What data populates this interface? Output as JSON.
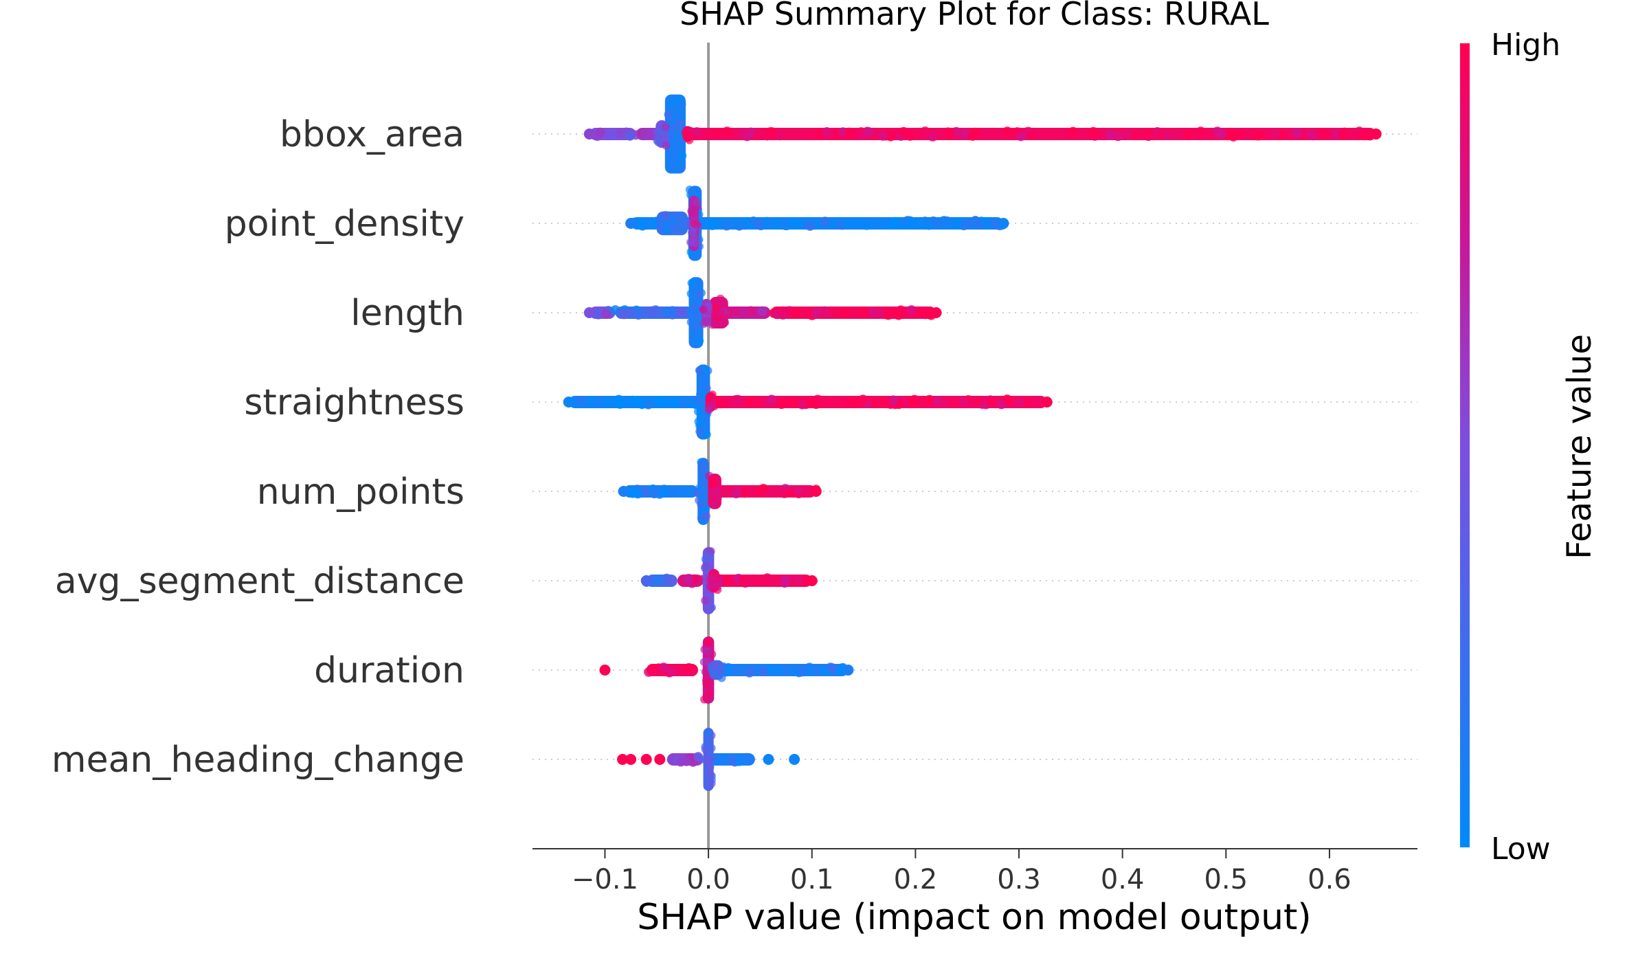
{
  "chart_data": {
    "type": "scatter",
    "title": "SHAP Summary Plot for Class: RURAL",
    "xlabel": "SHAP value (impact on model output)",
    "ylabel": "",
    "xlim": [
      -0.17,
      0.685
    ],
    "xticks": [
      -0.1,
      0.0,
      0.1,
      0.2,
      0.3,
      0.4,
      0.5,
      0.6
    ],
    "xtick_labels": [
      "−0.1",
      "0.0",
      "0.1",
      "0.2",
      "0.3",
      "0.4",
      "0.5",
      "0.6"
    ],
    "colorbar": {
      "title": "Feature value",
      "high_label": "High",
      "low_label": "Low",
      "low_color": "#008bfb",
      "high_color": "#ff0052"
    },
    "zero_line": true,
    "features": [
      {
        "name": "bbox_area",
        "min": -0.115,
        "max": 0.645,
        "segments": [
          {
            "from": -0.115,
            "to": -0.07,
            "color": 0.5
          },
          {
            "from": -0.07,
            "to": -0.045,
            "color": 0.6
          },
          {
            "from": -0.045,
            "to": -0.02,
            "color": 0.15
          },
          {
            "from": -0.02,
            "to": 0.645,
            "color": 0.95
          }
        ],
        "clusters": [
          {
            "x": -0.032,
            "width": 0.02,
            "height": 1.0,
            "color": 0.1
          },
          {
            "x": -0.045,
            "width": 0.012,
            "height": 0.35,
            "color": 0.45
          },
          {
            "x": -0.02,
            "width": 0.01,
            "height": 0.2,
            "color": 0.9
          }
        ],
        "endpoints": [
          {
            "x": -0.115,
            "color": 0.55
          },
          {
            "x": 0.645,
            "color": 1.0
          }
        ]
      },
      {
        "name": "point_density",
        "min": -0.075,
        "max": 0.285,
        "segments": [
          {
            "from": -0.075,
            "to": 0.285,
            "color": 0.05
          }
        ],
        "clusters": [
          {
            "x": -0.013,
            "width": 0.013,
            "height": 0.95,
            "color": 0.08
          },
          {
            "x": -0.035,
            "width": 0.03,
            "height": 0.3,
            "color": 0.2
          },
          {
            "x": -0.014,
            "width": 0.006,
            "height": 0.7,
            "color": 0.7
          }
        ],
        "endpoints": [
          {
            "x": -0.075,
            "color": 0.1
          },
          {
            "x": 0.285,
            "color": 0.05
          }
        ]
      },
      {
        "name": "length",
        "min": -0.115,
        "max": 0.22,
        "segments": [
          {
            "from": -0.115,
            "to": -0.09,
            "color": 0.45
          },
          {
            "from": -0.09,
            "to": -0.015,
            "color": 0.25
          },
          {
            "from": 0.005,
            "to": 0.06,
            "color": 0.75
          },
          {
            "from": 0.06,
            "to": 0.22,
            "color": 0.97
          }
        ],
        "clusters": [
          {
            "x": -0.012,
            "width": 0.014,
            "height": 0.9,
            "color": 0.1
          },
          {
            "x": 0.01,
            "width": 0.018,
            "height": 0.4,
            "color": 0.85
          },
          {
            "x": -0.002,
            "width": 0.006,
            "height": 0.35,
            "color": 0.6
          }
        ],
        "endpoints": [
          {
            "x": -0.115,
            "color": 0.5
          },
          {
            "x": 0.22,
            "color": 1.0
          }
        ]
      },
      {
        "name": "straightness",
        "min": -0.135,
        "max": 0.327,
        "segments": [
          {
            "from": -0.135,
            "to": -0.005,
            "color": 0.05
          },
          {
            "from": 0.0,
            "to": 0.327,
            "color": 0.96
          }
        ],
        "clusters": [
          {
            "x": -0.005,
            "width": 0.013,
            "height": 0.95,
            "color": 0.1
          },
          {
            "x": 0.002,
            "width": 0.01,
            "height": 0.25,
            "color": 0.85
          }
        ],
        "endpoints": [
          {
            "x": -0.135,
            "color": 0.05
          },
          {
            "x": 0.327,
            "color": 1.0
          }
        ]
      },
      {
        "name": "num_points",
        "min": -0.082,
        "max": 0.104,
        "segments": [
          {
            "from": -0.082,
            "to": -0.01,
            "color": 0.08
          },
          {
            "from": -0.01,
            "to": 0.005,
            "color": 0.4
          },
          {
            "from": 0.005,
            "to": 0.104,
            "color": 0.93
          }
        ],
        "clusters": [
          {
            "x": -0.005,
            "width": 0.011,
            "height": 0.85,
            "color": 0.15
          },
          {
            "x": 0.006,
            "width": 0.013,
            "height": 0.45,
            "color": 0.9
          }
        ],
        "endpoints": [
          {
            "x": -0.082,
            "color": 0.1
          },
          {
            "x": 0.104,
            "color": 1.0
          }
        ]
      },
      {
        "name": "avg_segment_distance",
        "min": -0.06,
        "max": 0.1,
        "segments": [
          {
            "from": -0.06,
            "to": -0.03,
            "color": 0.25
          },
          {
            "from": -0.03,
            "to": -0.005,
            "color": 0.85
          },
          {
            "from": -0.005,
            "to": 0.1,
            "color": 0.95
          }
        ],
        "clusters": [
          {
            "x": 0.0,
            "width": 0.011,
            "height": 0.85,
            "color": 0.45
          },
          {
            "x": 0.005,
            "width": 0.01,
            "height": 0.3,
            "color": 0.9
          }
        ],
        "endpoints": [
          {
            "x": -0.06,
            "color": 0.3
          },
          {
            "x": 0.1,
            "color": 1.0
          }
        ]
      },
      {
        "name": "duration",
        "min": -0.1,
        "max": 0.135,
        "segments": [
          {
            "from": -0.06,
            "to": -0.01,
            "color": 0.95
          },
          {
            "from": 0.0,
            "to": 0.135,
            "color": 0.12
          }
        ],
        "clusters": [
          {
            "x": 0.0,
            "width": 0.011,
            "height": 0.85,
            "color": 0.8
          },
          {
            "x": 0.008,
            "width": 0.014,
            "height": 0.25,
            "color": 0.3
          }
        ],
        "endpoints": [
          {
            "x": -0.1,
            "color": 1.0
          },
          {
            "x": 0.135,
            "color": 0.1
          }
        ]
      },
      {
        "name": "mean_heading_change",
        "min": -0.083,
        "max": 0.083,
        "segments": [
          {
            "from": -0.04,
            "to": -0.005,
            "color": 0.55
          },
          {
            "from": 0.0,
            "to": 0.045,
            "color": 0.1
          }
        ],
        "clusters": [
          {
            "x": 0.0,
            "width": 0.01,
            "height": 0.8,
            "color": 0.3
          }
        ],
        "endpoints": [
          {
            "x": -0.083,
            "color": 1.0
          },
          {
            "x": -0.075,
            "color": 1.0
          },
          {
            "x": -0.06,
            "color": 1.0
          },
          {
            "x": -0.047,
            "color": 1.0
          },
          {
            "x": 0.058,
            "color": 0.05
          },
          {
            "x": 0.083,
            "color": 0.05
          }
        ]
      }
    ]
  }
}
